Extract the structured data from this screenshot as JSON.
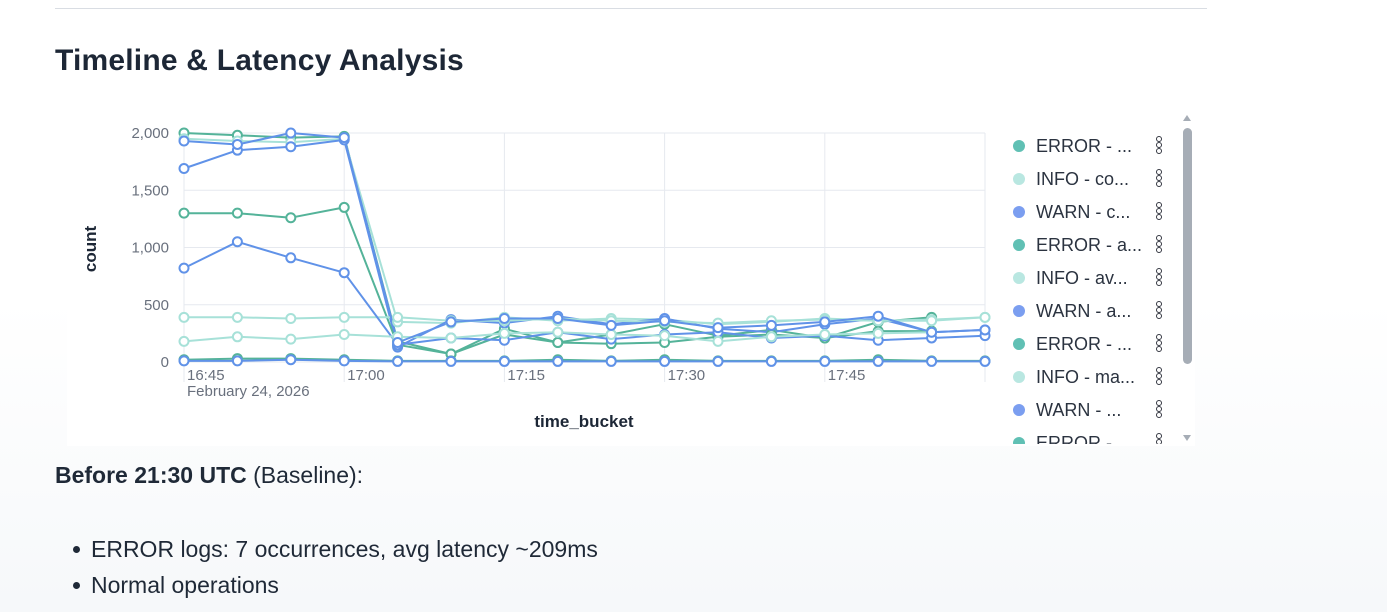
{
  "section": {
    "title": "Timeline & Latency Analysis"
  },
  "colors": {
    "teal": "#54b399",
    "teal_light": "#a7e1d8",
    "blue": "#6092e8",
    "grid": "#e6e9ef",
    "text": "#1f2937"
  },
  "legend": {
    "items": [
      {
        "label": "ERROR - ...",
        "color": "#60c0b4"
      },
      {
        "label": "INFO - co...",
        "color": "#b9e7e1"
      },
      {
        "label": "WARN - c...",
        "color": "#7b9ef0"
      },
      {
        "label": "ERROR - a...",
        "color": "#60c0b4"
      },
      {
        "label": "INFO - av...",
        "color": "#b9e7e1"
      },
      {
        "label": "WARN - a...",
        "color": "#7b9ef0"
      },
      {
        "label": "ERROR - ...",
        "color": "#60c0b4"
      },
      {
        "label": "INFO - ma...",
        "color": "#b9e7e1"
      },
      {
        "label": "WARN - ...",
        "color": "#7b9ef0"
      },
      {
        "label": "ERROR - ...",
        "color": "#60c0b4"
      }
    ],
    "menu_icon": "more-vertical-icon"
  },
  "chart_data": {
    "type": "line",
    "xlabel": "time_bucket",
    "ylabel": "count",
    "ylim": [
      0,
      2000
    ],
    "yticks": [
      0,
      500,
      1000,
      1500,
      2000
    ],
    "ytick_labels": [
      "0",
      "500",
      "1,000",
      "1,500",
      "2,000"
    ],
    "x": [
      "16:45",
      "16:50",
      "16:55",
      "17:00",
      "17:05",
      "17:10",
      "17:15",
      "17:20",
      "17:25",
      "17:30",
      "17:35",
      "17:40",
      "17:45",
      "17:50",
      "17:55",
      "18:00"
    ],
    "xticks": [
      "16:45",
      "17:00",
      "17:15",
      "17:30",
      "17:45"
    ],
    "x_date_label": "February 24, 2026",
    "grid": true,
    "legend_position": "right",
    "series": [
      {
        "color": "#54b399",
        "values": [
          2000,
          1980,
          1960,
          1970,
          180,
          70,
          290,
          170,
          240,
          330,
          230,
          280,
          210,
          350,
          390,
          null
        ]
      },
      {
        "color": "#a7e1d8",
        "values": [
          1950,
          1930,
          1920,
          1950,
          350,
          340,
          390,
          360,
          380,
          370,
          330,
          350,
          380,
          360,
          370,
          390
        ]
      },
      {
        "color": "#6092e8",
        "values": [
          1690,
          1850,
          1880,
          1940,
          130,
          370,
          340,
          400,
          330,
          380,
          290,
          260,
          330,
          380,
          260,
          280
        ]
      },
      {
        "color": "#54b399",
        "values": [
          1300,
          1300,
          1260,
          1350,
          150,
          70,
          240,
          170,
          160,
          170,
          220,
          240,
          210,
          270,
          270,
          null
        ]
      },
      {
        "color": "#a7e1d8",
        "values": [
          390,
          390,
          380,
          390,
          390,
          360,
          360,
          380,
          360,
          350,
          340,
          360,
          370,
          360,
          360,
          390
        ]
      },
      {
        "color": "#6092e8",
        "values": [
          820,
          1050,
          910,
          780,
          150,
          210,
          190,
          260,
          200,
          240,
          260,
          210,
          230,
          190,
          210,
          230
        ]
      },
      {
        "color": "#a7e1d8",
        "values": [
          180,
          220,
          200,
          240,
          220,
          210,
          250,
          260,
          240,
          230,
          180,
          220,
          240,
          250,
          260,
          null
        ]
      },
      {
        "color": "#6092e8",
        "values": [
          1930,
          1900,
          2000,
          1960,
          170,
          350,
          380,
          380,
          320,
          360,
          300,
          320,
          350,
          400,
          260,
          280
        ]
      },
      {
        "color": "#54b399",
        "values": [
          20,
          30,
          30,
          20,
          10,
          10,
          10,
          20,
          10,
          20,
          10,
          10,
          10,
          20,
          10,
          10
        ]
      },
      {
        "color": "#6092e8",
        "values": [
          10,
          10,
          20,
          10,
          5,
          5,
          5,
          5,
          5,
          5,
          5,
          5,
          5,
          5,
          5,
          5
        ]
      }
    ]
  },
  "baseline": {
    "bold": "Before 21:30 UTC",
    "rest": " (Baseline):"
  },
  "notes": [
    "ERROR logs: 7 occurrences, avg latency ~209ms",
    "Normal operations"
  ]
}
